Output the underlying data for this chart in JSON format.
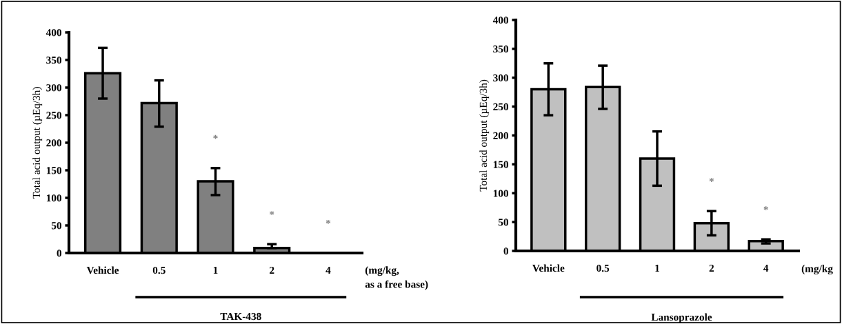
{
  "chart_data": [
    {
      "type": "bar",
      "categories": [
        "Vehicle",
        "0.5",
        "1",
        "2",
        "4"
      ],
      "ylabel": "Total acid output (µEq/3h)",
      "xlabel": "TAK-438",
      "ylim": [
        0,
        400
      ],
      "yticks": [
        0,
        50,
        100,
        150,
        200,
        250,
        300,
        350,
        400
      ],
      "grid": false,
      "legend": false,
      "series": [
        {
          "color": "#808080",
          "values": [
            326,
            272,
            130,
            9,
            0
          ],
          "errors": [
            [
              280,
              372
            ],
            [
              229,
              313
            ],
            [
              105,
              154
            ],
            [
              9,
              16
            ],
            null
          ]
        }
      ],
      "annotations": [
        {
          "text": "*",
          "x": "1",
          "y": 154
        },
        {
          "text": "*",
          "x": "2",
          "y": 16
        },
        {
          "text": "*",
          "x": "4",
          "y": 0
        },
        "(mg/kg,\nas a free base)"
      ]
    },
    {
      "type": "bar",
      "categories": [
        "Vehicle",
        "0.5",
        "1",
        "2",
        "4"
      ],
      "ylabel": "Total acid output (µEq/3h)",
      "xlabel": "Lansoprazole",
      "ylim": [
        0,
        400
      ],
      "yticks": [
        0,
        50,
        100,
        150,
        200,
        250,
        300,
        350,
        400
      ],
      "grid": false,
      "legend": false,
      "series": [
        {
          "color": "#c0c0c0",
          "values": [
            280,
            284,
            160,
            48,
            17
          ],
          "errors": [
            [
              235,
              325
            ],
            [
              246,
              321
            ],
            [
              113,
              207
            ],
            [
              27,
              69
            ],
            [
              13,
              20
            ]
          ]
        }
      ],
      "annotations": [
        {
          "text": "*",
          "x": "2",
          "y": 69
        },
        {
          "text": "*",
          "x": "4",
          "y": 20
        },
        "(mg/kg"
      ]
    }
  ]
}
